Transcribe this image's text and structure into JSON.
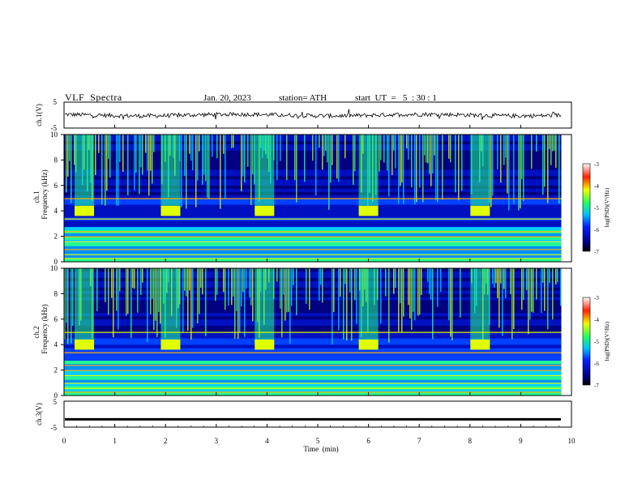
{
  "header": {
    "title": "VLF  Spectra",
    "date": "Jan. 20, 2023",
    "station": "station= ATH",
    "start": "start  UT  =   5  : 30 : 1"
  },
  "chart_data": [
    {
      "type": "line",
      "panel": "ch1-waveform",
      "ylabel": "ch.1(V)",
      "ylim": [
        -5,
        5
      ],
      "yticks": [
        "5",
        "-5"
      ],
      "baseline_value": 0,
      "color": "#000000"
    },
    {
      "type": "heatmap",
      "panel": "ch1-spectrogram",
      "ylabel": "ch.1 Frequency (kHz)",
      "ylim": [
        0,
        10
      ],
      "yticks": [
        "0",
        "2",
        "4",
        "6",
        "8",
        "10"
      ],
      "xlim": [
        0,
        9.8
      ],
      "burst_times_min": [
        0.4,
        2.1,
        3.95,
        6.0,
        8.2
      ],
      "burst_freq_khz": 4,
      "colorbar": {
        "label": "log(PSD)(V²/Hz)",
        "range": [
          -7,
          -3
        ],
        "ticks": [
          "-3",
          "-4",
          "-5",
          "-6",
          "-7"
        ]
      }
    },
    {
      "type": "heatmap",
      "panel": "ch2-spectrogram",
      "ylabel": "ch.2 Frequency (kHz)",
      "ylim": [
        0,
        10
      ],
      "yticks": [
        "0",
        "2",
        "4",
        "6",
        "8",
        "10"
      ],
      "xlim": [
        0,
        9.8
      ],
      "burst_times_min": [
        0.4,
        2.1,
        3.95,
        6.0,
        8.2
      ],
      "burst_freq_khz": 4,
      "colorbar": {
        "label": "log(PSD)(V²/Hz)",
        "range": [
          -7,
          -3
        ],
        "ticks": [
          "-3",
          "-4",
          "-5",
          "-6",
          "-7"
        ]
      }
    },
    {
      "type": "line",
      "panel": "ch3-waveform",
      "ylabel": "ch.3(V)",
      "ylim": [
        -5,
        5
      ],
      "yticks": [
        "5",
        "-5"
      ],
      "baseline_value": -2,
      "color": "#000000"
    }
  ],
  "xaxis": {
    "label": "Time  (min)",
    "ticks": [
      "0",
      "1",
      "2",
      "3",
      "4",
      "5",
      "6",
      "7",
      "8",
      "9",
      "10"
    ],
    "range": [
      0,
      10
    ]
  }
}
